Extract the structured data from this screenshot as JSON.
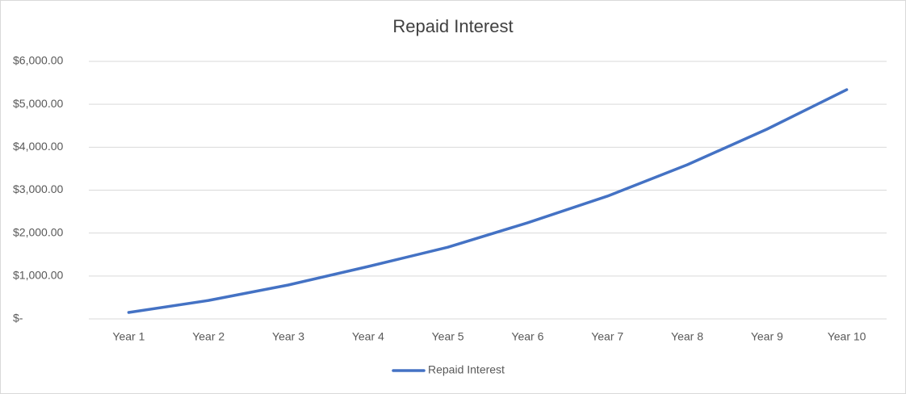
{
  "chart_data": {
    "type": "line",
    "title": "Repaid Interest",
    "categories": [
      "Year 1",
      "Year 2",
      "Year 3",
      "Year 4",
      "Year 5",
      "Year 6",
      "Year 7",
      "Year 8",
      "Year 9",
      "Year 10"
    ],
    "series": [
      {
        "name": "Repaid Interest",
        "color": "#4472c4",
        "values": [
          150,
          430,
          790,
          1220,
          1670,
          2240,
          2860,
          3590,
          4420,
          5340
        ]
      }
    ],
    "ylim": [
      0,
      6000
    ],
    "yticks": [
      {
        "value": 0,
        "label": "$-"
      },
      {
        "value": 1000,
        "label": "$1,000.00"
      },
      {
        "value": 2000,
        "label": "$2,000.00"
      },
      {
        "value": 3000,
        "label": "$3,000.00"
      },
      {
        "value": 4000,
        "label": "$4,000.00"
      },
      {
        "value": 5000,
        "label": "$5,000.00"
      },
      {
        "value": 6000,
        "label": "$6,000.00"
      }
    ],
    "grid": true,
    "legend": "bottom"
  }
}
